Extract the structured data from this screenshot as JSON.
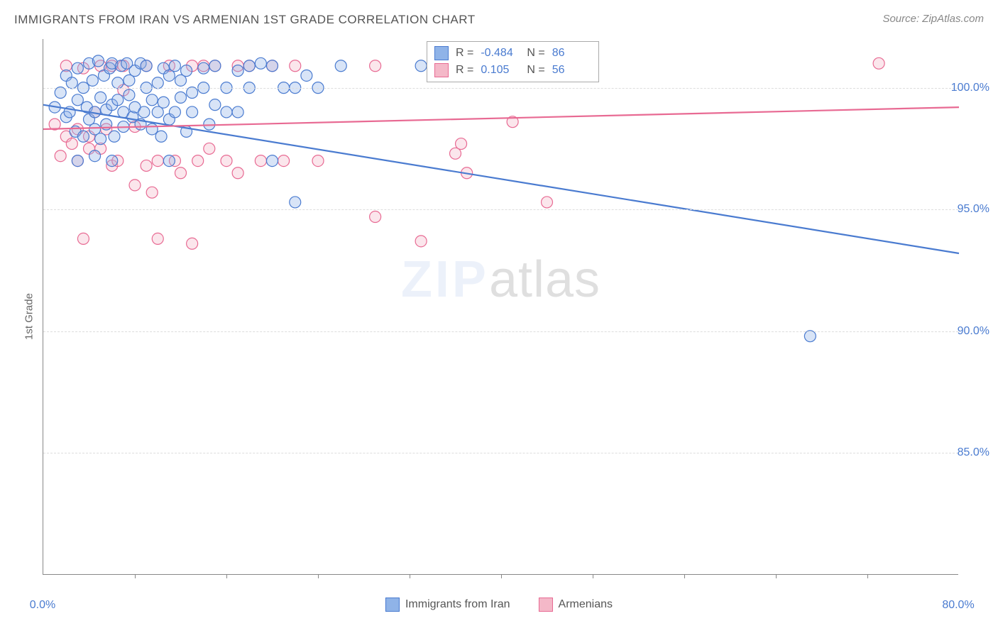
{
  "title": "IMMIGRANTS FROM IRAN VS ARMENIAN 1ST GRADE CORRELATION CHART",
  "source": "Source: ZipAtlas.com",
  "ylabel": "1st Grade",
  "watermark_zip": "ZIP",
  "watermark_atlas": "atlas",
  "chart": {
    "type": "scatter",
    "xlim": [
      0,
      80
    ],
    "ylim": [
      80,
      102
    ],
    "background": "#ffffff",
    "grid_color": "#dddddd",
    "axis_color": "#888888",
    "ygrid": [
      85,
      90,
      95,
      100
    ],
    "yticks": [
      {
        "v": 85,
        "label": "85.0%"
      },
      {
        "v": 90,
        "label": "90.0%"
      },
      {
        "v": 95,
        "label": "95.0%"
      },
      {
        "v": 100,
        "label": "100.0%"
      }
    ],
    "xticks_major": [
      0,
      80
    ],
    "xticks_minor": [
      8,
      16,
      24,
      32,
      40,
      48,
      56,
      64,
      72
    ],
    "xtick_labels": [
      {
        "v": 0,
        "label": "0.0%"
      },
      {
        "v": 80,
        "label": "80.0%"
      }
    ],
    "marker_radius": 8,
    "series": [
      {
        "name": "Immigrants from Iran",
        "color_fill": "#8fb3e8",
        "color_stroke": "#4a7bd0",
        "R_label": "R =",
        "R": "-0.484",
        "N_label": "N =",
        "N": "86",
        "trend": {
          "x1": 0,
          "y1": 99.3,
          "x2": 80,
          "y2": 93.2,
          "width": 2.2
        },
        "points": [
          [
            1,
            99.2
          ],
          [
            1.5,
            99.8
          ],
          [
            2,
            98.8
          ],
          [
            2,
            100.5
          ],
          [
            2.3,
            99.0
          ],
          [
            2.5,
            100.2
          ],
          [
            2.8,
            98.2
          ],
          [
            3,
            99.5
          ],
          [
            3,
            100.8
          ],
          [
            3.5,
            98.0
          ],
          [
            3.5,
            100.0
          ],
          [
            3.8,
            99.2
          ],
          [
            4,
            98.7
          ],
          [
            4,
            101.0
          ],
          [
            4.3,
            100.3
          ],
          [
            4.5,
            99.0
          ],
          [
            4.5,
            98.3
          ],
          [
            4.8,
            101.1
          ],
          [
            5,
            99.6
          ],
          [
            5,
            97.9
          ],
          [
            5.3,
            100.5
          ],
          [
            5.5,
            99.1
          ],
          [
            5.5,
            98.5
          ],
          [
            5.8,
            100.8
          ],
          [
            6,
            99.3
          ],
          [
            6,
            101.0
          ],
          [
            6.2,
            98.0
          ],
          [
            6.5,
            99.5
          ],
          [
            6.5,
            100.2
          ],
          [
            6.8,
            100.9
          ],
          [
            7,
            99.0
          ],
          [
            7,
            98.4
          ],
          [
            7.3,
            101.0
          ],
          [
            7.5,
            99.7
          ],
          [
            7.5,
            100.3
          ],
          [
            7.8,
            98.8
          ],
          [
            8,
            100.7
          ],
          [
            8,
            99.2
          ],
          [
            8.5,
            101.0
          ],
          [
            8.5,
            98.5
          ],
          [
            8.8,
            99.0
          ],
          [
            9,
            100.0
          ],
          [
            9,
            100.9
          ],
          [
            9.5,
            98.3
          ],
          [
            9.5,
            99.5
          ],
          [
            10,
            100.2
          ],
          [
            10,
            99.0
          ],
          [
            10.3,
            98.0
          ],
          [
            10.5,
            100.8
          ],
          [
            10.5,
            99.4
          ],
          [
            11,
            98.7
          ],
          [
            11,
            100.5
          ],
          [
            11.5,
            100.9
          ],
          [
            11.5,
            99.0
          ],
          [
            12,
            99.6
          ],
          [
            12,
            100.3
          ],
          [
            12.5,
            98.2
          ],
          [
            12.5,
            100.7
          ],
          [
            13,
            99.0
          ],
          [
            13,
            99.8
          ],
          [
            14,
            100.0
          ],
          [
            14,
            100.8
          ],
          [
            14.5,
            98.5
          ],
          [
            15,
            99.3
          ],
          [
            15,
            100.9
          ],
          [
            16,
            99.0
          ],
          [
            16,
            100.0
          ],
          [
            17,
            99.0
          ],
          [
            17,
            100.7
          ],
          [
            18,
            100.0
          ],
          [
            18,
            100.9
          ],
          [
            19,
            101.0
          ],
          [
            20,
            97.0
          ],
          [
            20,
            100.9
          ],
          [
            21,
            100.0
          ],
          [
            22,
            100.0
          ],
          [
            22,
            95.3
          ],
          [
            23,
            100.5
          ],
          [
            24,
            100.0
          ],
          [
            26,
            100.9
          ],
          [
            33,
            100.9
          ],
          [
            3,
            97.0
          ],
          [
            6,
            97.0
          ],
          [
            11,
            97.0
          ],
          [
            4.5,
            97.2
          ],
          [
            67,
            89.8
          ]
        ]
      },
      {
        "name": "Armenians",
        "color_fill": "#f4b8c8",
        "color_stroke": "#e86a93",
        "R_label": "R =",
        "R": "0.105",
        "N_label": "N =",
        "N": "56",
        "trend": {
          "x1": 0,
          "y1": 98.3,
          "x2": 80,
          "y2": 99.2,
          "width": 2.2
        },
        "points": [
          [
            1,
            98.5
          ],
          [
            2,
            98.0
          ],
          [
            2,
            100.9
          ],
          [
            2.5,
            97.7
          ],
          [
            3,
            98.3
          ],
          [
            3,
            97.0
          ],
          [
            3.5,
            100.8
          ],
          [
            4,
            98.0
          ],
          [
            4,
            97.5
          ],
          [
            4.5,
            99.0
          ],
          [
            5,
            97.5
          ],
          [
            5,
            100.9
          ],
          [
            5.5,
            98.3
          ],
          [
            6,
            96.8
          ],
          [
            6,
            100.9
          ],
          [
            6.5,
            97.0
          ],
          [
            7,
            99.9
          ],
          [
            7,
            100.9
          ],
          [
            8,
            98.4
          ],
          [
            8,
            96.0
          ],
          [
            9,
            96.8
          ],
          [
            9,
            100.9
          ],
          [
            10,
            97.0
          ],
          [
            10,
            93.8
          ],
          [
            11,
            100.9
          ],
          [
            11.5,
            97.0
          ],
          [
            12,
            96.5
          ],
          [
            13,
            93.6
          ],
          [
            13,
            100.9
          ],
          [
            13.5,
            97.0
          ],
          [
            14,
            100.9
          ],
          [
            14.5,
            97.5
          ],
          [
            15,
            100.9
          ],
          [
            16,
            97.0
          ],
          [
            17,
            96.5
          ],
          [
            17,
            100.9
          ],
          [
            18,
            100.9
          ],
          [
            19,
            97.0
          ],
          [
            20,
            100.9
          ],
          [
            21,
            97.0
          ],
          [
            22,
            100.9
          ],
          [
            24,
            97.0
          ],
          [
            29,
            100.9
          ],
          [
            29,
            94.7
          ],
          [
            33,
            93.7
          ],
          [
            35,
            100.9
          ],
          [
            36,
            97.3
          ],
          [
            36.5,
            97.7
          ],
          [
            37,
            96.5
          ],
          [
            41,
            98.6
          ],
          [
            39,
            100.8
          ],
          [
            44,
            95.3
          ],
          [
            3.5,
            93.8
          ],
          [
            9.5,
            95.7
          ],
          [
            73,
            101.0
          ],
          [
            1.5,
            97.2
          ]
        ]
      }
    ]
  },
  "bottom_legend": [
    {
      "label": "Immigrants from Iran",
      "fill": "#8fb3e8",
      "stroke": "#4a7bd0"
    },
    {
      "label": "Armenians",
      "fill": "#f4b8c8",
      "stroke": "#e86a93"
    }
  ]
}
